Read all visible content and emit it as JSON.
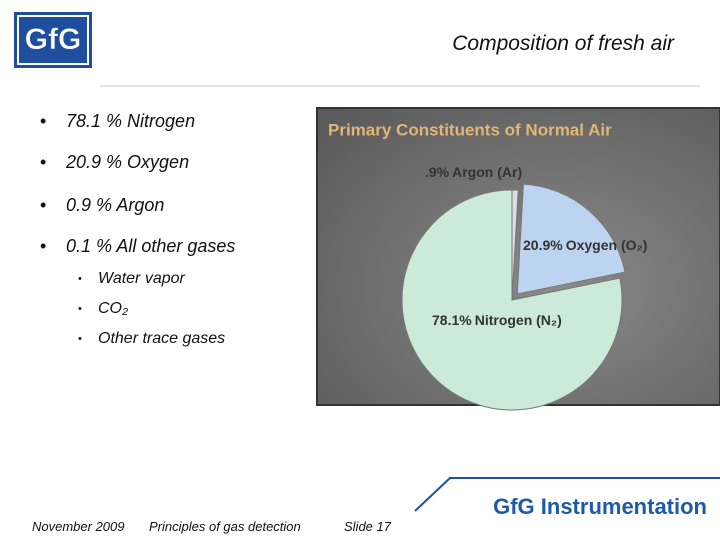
{
  "header": {
    "logo": "GfG",
    "title": "Composition of fresh air"
  },
  "bullets": [
    "78.1 % Nitrogen",
    "20.9 % Oxygen",
    "0.9 %  Argon",
    "0.1 % All other gases"
  ],
  "sub_bullets": [
    "Water vapor",
    "CO₂",
    "Other trace gases"
  ],
  "chart_data": {
    "type": "pie",
    "title": "Primary Constituents of Normal Air",
    "categories": [
      "Argon (Ar)",
      "Oxygen (O₂)",
      "Nitrogen (N₂)"
    ],
    "values": [
      0.9,
      20.9,
      78.1
    ],
    "value_labels": [
      ".9%",
      "20.9%",
      "78.1%"
    ],
    "colors": [
      "#d9dde6",
      "#bcd4ef",
      "#cbead8"
    ]
  },
  "footer": {
    "date": "November 2009",
    "course": "Principles of gas detection",
    "slide": "Slide 17",
    "brand": "GfG Instrumentation"
  }
}
